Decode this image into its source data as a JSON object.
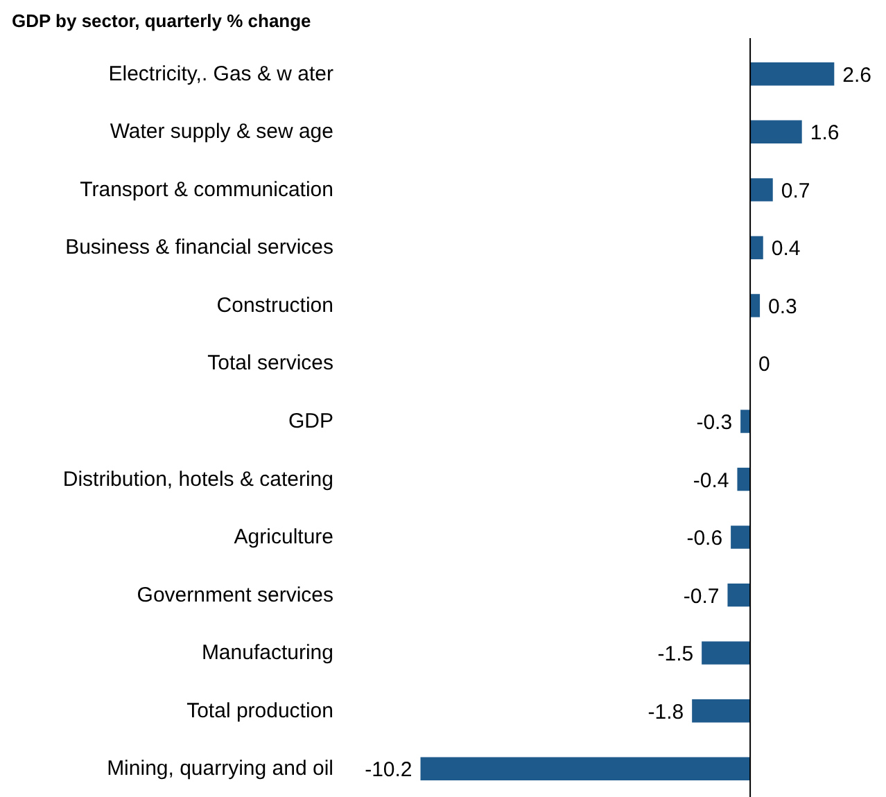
{
  "chart_data": {
    "type": "bar",
    "orientation": "horizontal",
    "title": "GDP by sector, quarterly % change",
    "categories": [
      "Electricity,. Gas & w ater",
      "Water supply & sew age",
      "Transport & communication",
      "Business & financial services",
      "Construction",
      "Total services",
      "GDP",
      "Distribution, hotels & catering",
      "Agriculture",
      "Government services",
      "Manufacturing",
      "Total production",
      "Mining, quarrying and oil"
    ],
    "values": [
      2.6,
      1.6,
      0.7,
      0.4,
      0.3,
      0,
      -0.3,
      -0.4,
      -0.6,
      -0.7,
      -1.5,
      -1.8,
      -10.2
    ],
    "color": "#1f5a8c",
    "data_labels": true,
    "grid": false
  }
}
